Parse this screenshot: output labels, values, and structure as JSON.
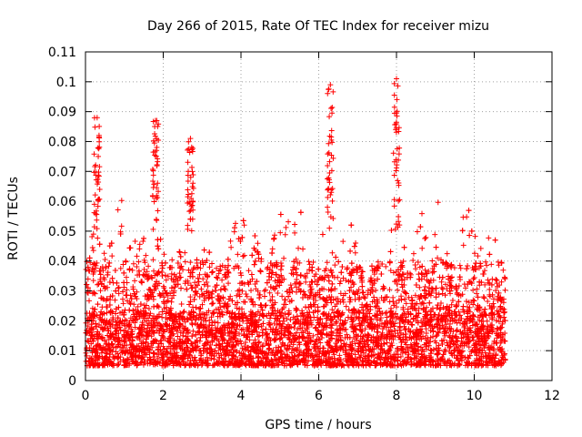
{
  "chart_data": {
    "type": "scatter",
    "title": "Day 266 of 2015, Rate Of TEC Index for receiver mizu",
    "xlabel": "GPS time / hours",
    "ylabel": "ROTI / TECUs",
    "xlim": [
      0,
      12
    ],
    "ylim": [
      0,
      0.11
    ],
    "x_ticks": [
      0,
      2,
      4,
      6,
      8,
      10,
      12
    ],
    "x_tick_labels": [
      "0",
      "2",
      "4",
      "6",
      "8",
      "10",
      "12"
    ],
    "y_ticks": [
      0,
      0.01,
      0.02,
      0.03,
      0.04,
      0.05,
      0.06,
      0.07,
      0.08,
      0.09,
      0.1,
      0.11
    ],
    "y_tick_labels": [
      "0",
      "0.01",
      "0.02",
      "0.03",
      "0.04",
      "0.05",
      "0.06",
      "0.07",
      "0.08",
      "0.09",
      "0.1",
      "0.11"
    ],
    "grid": true,
    "marker": "+",
    "color": "#ff0000",
    "series": [
      {
        "name": "ROTI",
        "x_range": [
          0.0,
          10.8
        ],
        "approx_point_count": 6000,
        "typical_range": [
          0.005,
          0.06
        ],
        "notable_peaks": [
          {
            "x": 0.3,
            "y": 0.088
          },
          {
            "x": 1.8,
            "y": 0.087
          },
          {
            "x": 2.7,
            "y": 0.081
          },
          {
            "x": 6.3,
            "y": 0.099
          },
          {
            "x": 8.0,
            "y": 0.101
          }
        ]
      }
    ]
  }
}
